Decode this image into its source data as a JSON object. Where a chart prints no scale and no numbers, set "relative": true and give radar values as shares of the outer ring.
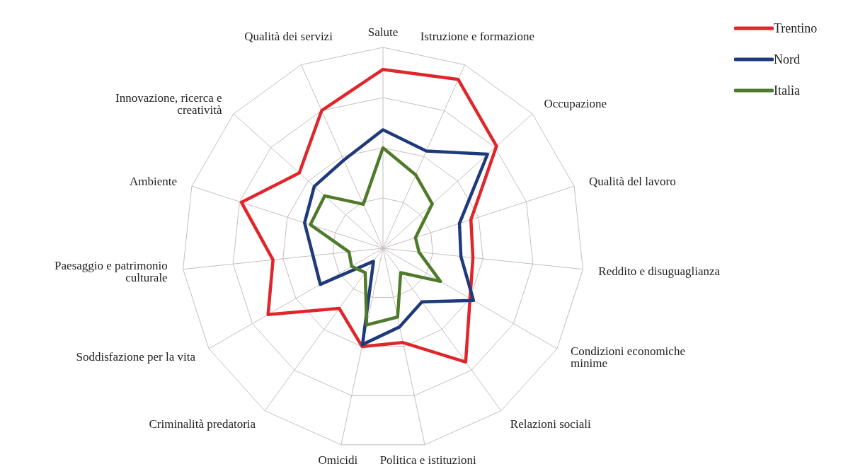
{
  "chart_data": {
    "type": "radar",
    "relative": true,
    "legend": "top right",
    "grid": true,
    "categories": [
      "Salute",
      "Istruzione e formazione",
      "Occupazione",
      "Qualità del lavoro",
      "Reddito e disuguaglianza",
      "Condizioni economiche minime",
      "Relazioni sociali",
      "Politica e istituzioni",
      "Omicidi",
      "Criminalità predatoria",
      "Soddisfazione per la vita",
      "Paesaggio e patrimonio culturale",
      "Ambiente",
      "Innovazione, ricerca e creatività",
      "Qualità dei servizi"
    ],
    "series": [
      {
        "name": "Trentino",
        "color": "#e0262a",
        "values": [
          0.89,
          0.92,
          0.76,
          0.46,
          0.45,
          0.5,
          0.7,
          0.48,
          0.5,
          0.37,
          0.66,
          0.55,
          0.74,
          0.56,
          0.75
        ]
      },
      {
        "name": "Nord",
        "color": "#1f3a7a",
        "values": [
          0.59,
          0.53,
          0.7,
          0.4,
          0.39,
          0.52,
          0.33,
          0.4,
          0.49,
          0.08,
          0.36,
          0.35,
          0.41,
          0.46,
          0.48
        ]
      },
      {
        "name": "Italia",
        "color": "#4e7a2a",
        "values": [
          0.5,
          0.4,
          0.33,
          0.17,
          0.18,
          0.33,
          0.15,
          0.35,
          0.39,
          0.15,
          0.18,
          0.17,
          0.38,
          0.39,
          0.24
        ]
      }
    ]
  }
}
